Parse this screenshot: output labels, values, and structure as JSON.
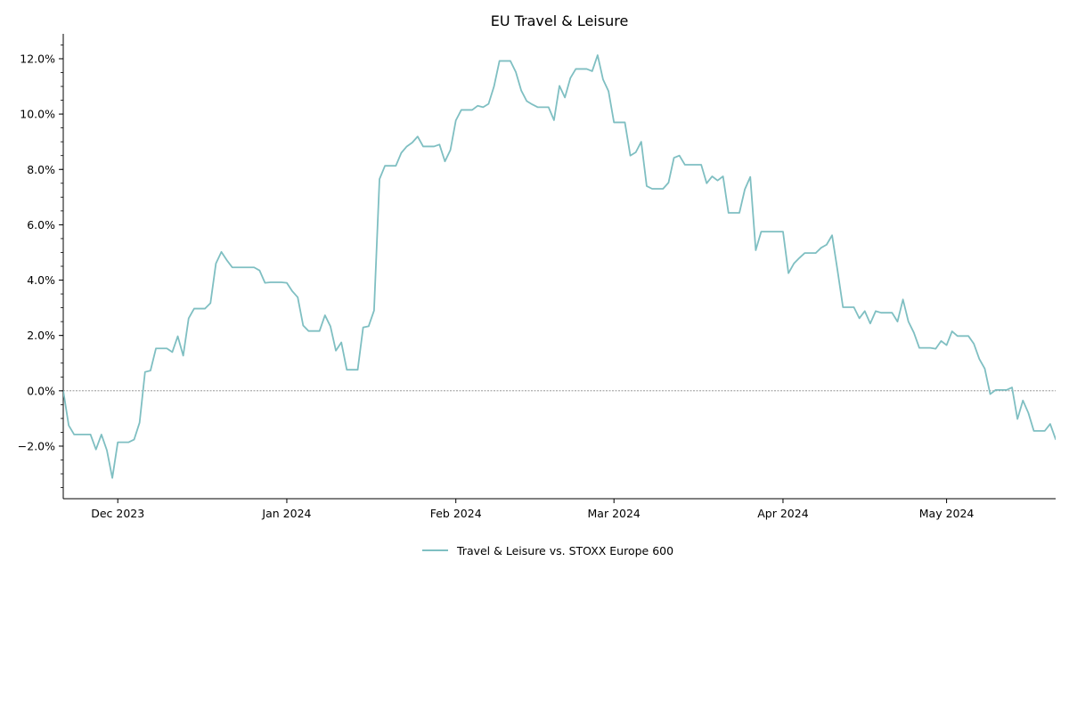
{
  "chart_data": {
    "type": "line",
    "title": "EU Travel & Leisure",
    "xlabel": "",
    "ylabel": "",
    "x_range": [
      "2023-11-21",
      "2024-05-21"
    ],
    "ylim": [
      -0.039,
      0.129
    ],
    "y_ticks": [
      {
        "value": -0.02,
        "label": "−2.0%"
      },
      {
        "value": 0.0,
        "label": "0.0%"
      },
      {
        "value": 0.02,
        "label": "2.0%"
      },
      {
        "value": 0.04,
        "label": "4.0%"
      },
      {
        "value": 0.06,
        "label": "6.0%"
      },
      {
        "value": 0.08,
        "label": "8.0%"
      },
      {
        "value": 0.1,
        "label": "10.0%"
      },
      {
        "value": 0.12,
        "label": "12.0%"
      }
    ],
    "x_ticks": [
      {
        "date": "2023-12-01",
        "label": "Dec 2023"
      },
      {
        "date": "2024-01-01",
        "label": "Jan 2024"
      },
      {
        "date": "2024-02-01",
        "label": "Feb 2024"
      },
      {
        "date": "2024-03-01",
        "label": "Mar 2024"
      },
      {
        "date": "2024-04-01",
        "label": "Apr 2024"
      },
      {
        "date": "2024-05-01",
        "label": "May 2024"
      }
    ],
    "zero_line": true,
    "grid": false,
    "legend_position": "bottom-center",
    "colors": {
      "series": "#7fbfc2",
      "zero_line": "#888888",
      "axis": "#000000"
    },
    "series": [
      {
        "name": "Travel & Leisure vs. STOXX Europe 600",
        "points": [
          [
            "2023-11-21",
            0.0
          ],
          [
            "2023-11-22",
            -0.0125
          ],
          [
            "2023-11-23",
            -0.0158
          ],
          [
            "2023-11-24",
            -0.0158
          ],
          [
            "2023-11-25",
            -0.0158
          ],
          [
            "2023-11-26",
            -0.0158
          ],
          [
            "2023-11-27",
            -0.0212
          ],
          [
            "2023-11-28",
            -0.0158
          ],
          [
            "2023-11-29",
            -0.0215
          ],
          [
            "2023-11-30",
            -0.0315
          ],
          [
            "2023-12-01",
            -0.0186
          ],
          [
            "2023-12-02",
            -0.0186
          ],
          [
            "2023-12-03",
            -0.0186
          ],
          [
            "2023-12-04",
            -0.0176
          ],
          [
            "2023-12-05",
            -0.0115
          ],
          [
            "2023-12-06",
            0.0068
          ],
          [
            "2023-12-07",
            0.0073
          ],
          [
            "2023-12-08",
            0.0153
          ],
          [
            "2023-12-09",
            0.0153
          ],
          [
            "2023-12-10",
            0.0153
          ],
          [
            "2023-12-11",
            0.014
          ],
          [
            "2023-12-12",
            0.0197
          ],
          [
            "2023-12-13",
            0.0127
          ],
          [
            "2023-12-14",
            0.0262
          ],
          [
            "2023-12-15",
            0.0297
          ],
          [
            "2023-12-16",
            0.0297
          ],
          [
            "2023-12-17",
            0.0297
          ],
          [
            "2023-12-18",
            0.0317
          ],
          [
            "2023-12-19",
            0.046
          ],
          [
            "2023-12-20",
            0.0502
          ],
          [
            "2023-12-21",
            0.0472
          ],
          [
            "2023-12-22",
            0.0446
          ],
          [
            "2023-12-23",
            0.0446
          ],
          [
            "2023-12-24",
            0.0446
          ],
          [
            "2023-12-25",
            0.0446
          ],
          [
            "2023-12-26",
            0.0446
          ],
          [
            "2023-12-27",
            0.0435
          ],
          [
            "2023-12-28",
            0.039
          ],
          [
            "2023-12-29",
            0.0392
          ],
          [
            "2023-12-30",
            0.0392
          ],
          [
            "2023-12-31",
            0.0392
          ],
          [
            "2024-01-01",
            0.039
          ],
          [
            "2024-01-02",
            0.036
          ],
          [
            "2024-01-03",
            0.0338
          ],
          [
            "2024-01-04",
            0.0236
          ],
          [
            "2024-01-05",
            0.0216
          ],
          [
            "2024-01-06",
            0.0216
          ],
          [
            "2024-01-07",
            0.0216
          ],
          [
            "2024-01-08",
            0.0273
          ],
          [
            "2024-01-09",
            0.0233
          ],
          [
            "2024-01-10",
            0.0145
          ],
          [
            "2024-01-11",
            0.0175
          ],
          [
            "2024-01-12",
            0.0076
          ],
          [
            "2024-01-13",
            0.0076
          ],
          [
            "2024-01-14",
            0.0076
          ],
          [
            "2024-01-15",
            0.0229
          ],
          [
            "2024-01-16",
            0.0233
          ],
          [
            "2024-01-17",
            0.029
          ],
          [
            "2024-01-18",
            0.0765
          ],
          [
            "2024-01-19",
            0.0813
          ],
          [
            "2024-01-20",
            0.0813
          ],
          [
            "2024-01-21",
            0.0813
          ],
          [
            "2024-01-22",
            0.086
          ],
          [
            "2024-01-23",
            0.0883
          ],
          [
            "2024-01-24",
            0.0897
          ],
          [
            "2024-01-25",
            0.0919
          ],
          [
            "2024-01-26",
            0.0883
          ],
          [
            "2024-01-27",
            0.0883
          ],
          [
            "2024-01-28",
            0.0883
          ],
          [
            "2024-01-29",
            0.089
          ],
          [
            "2024-01-30",
            0.0829
          ],
          [
            "2024-01-31",
            0.087
          ],
          [
            "2024-02-01",
            0.0977
          ],
          [
            "2024-02-02",
            0.1015
          ],
          [
            "2024-02-03",
            0.1015
          ],
          [
            "2024-02-04",
            0.1015
          ],
          [
            "2024-02-05",
            0.103
          ],
          [
            "2024-02-06",
            0.1025
          ],
          [
            "2024-02-07",
            0.1037
          ],
          [
            "2024-02-08",
            0.11
          ],
          [
            "2024-02-09",
            0.1192
          ],
          [
            "2024-02-10",
            0.1192
          ],
          [
            "2024-02-11",
            0.1192
          ],
          [
            "2024-02-12",
            0.1152
          ],
          [
            "2024-02-13",
            0.1085
          ],
          [
            "2024-02-14",
            0.1047
          ],
          [
            "2024-02-15",
            0.1035
          ],
          [
            "2024-02-16",
            0.1025
          ],
          [
            "2024-02-17",
            0.1025
          ],
          [
            "2024-02-18",
            0.1025
          ],
          [
            "2024-02-19",
            0.0978
          ],
          [
            "2024-02-20",
            0.1102
          ],
          [
            "2024-02-21",
            0.106
          ],
          [
            "2024-02-22",
            0.113
          ],
          [
            "2024-02-23",
            0.1163
          ],
          [
            "2024-02-24",
            0.1163
          ],
          [
            "2024-02-25",
            0.1163
          ],
          [
            "2024-02-26",
            0.1155
          ],
          [
            "2024-02-27",
            0.1213
          ],
          [
            "2024-02-28",
            0.1125
          ],
          [
            "2024-02-29",
            0.1083
          ],
          [
            "2024-03-01",
            0.097
          ],
          [
            "2024-03-02",
            0.097
          ],
          [
            "2024-03-03",
            0.097
          ],
          [
            "2024-03-04",
            0.085
          ],
          [
            "2024-03-05",
            0.0862
          ],
          [
            "2024-03-06",
            0.09
          ],
          [
            "2024-03-07",
            0.074
          ],
          [
            "2024-03-08",
            0.073
          ],
          [
            "2024-03-09",
            0.073
          ],
          [
            "2024-03-10",
            0.073
          ],
          [
            "2024-03-11",
            0.0752
          ],
          [
            "2024-03-12",
            0.0842
          ],
          [
            "2024-03-13",
            0.085
          ],
          [
            "2024-03-14",
            0.0817
          ],
          [
            "2024-03-15",
            0.0817
          ],
          [
            "2024-03-16",
            0.0817
          ],
          [
            "2024-03-17",
            0.0817
          ],
          [
            "2024-03-18",
            0.075
          ],
          [
            "2024-03-19",
            0.0775
          ],
          [
            "2024-03-20",
            0.076
          ],
          [
            "2024-03-21",
            0.0775
          ],
          [
            "2024-03-22",
            0.0643
          ],
          [
            "2024-03-23",
            0.0643
          ],
          [
            "2024-03-24",
            0.0643
          ],
          [
            "2024-03-25",
            0.0728
          ],
          [
            "2024-03-26",
            0.0773
          ],
          [
            "2024-03-27",
            0.0508
          ],
          [
            "2024-03-28",
            0.0575
          ],
          [
            "2024-03-29",
            0.0575
          ],
          [
            "2024-03-30",
            0.0575
          ],
          [
            "2024-03-31",
            0.0575
          ],
          [
            "2024-04-01",
            0.0575
          ],
          [
            "2024-04-02",
            0.0425
          ],
          [
            "2024-04-03",
            0.046
          ],
          [
            "2024-04-04",
            0.048
          ],
          [
            "2024-04-05",
            0.0498
          ],
          [
            "2024-04-06",
            0.0498
          ],
          [
            "2024-04-07",
            0.0498
          ],
          [
            "2024-04-08",
            0.0517
          ],
          [
            "2024-04-09",
            0.0528
          ],
          [
            "2024-04-10",
            0.0562
          ],
          [
            "2024-04-11",
            0.0435
          ],
          [
            "2024-04-12",
            0.0302
          ],
          [
            "2024-04-13",
            0.0302
          ],
          [
            "2024-04-14",
            0.0302
          ],
          [
            "2024-04-15",
            0.0262
          ],
          [
            "2024-04-16",
            0.0288
          ],
          [
            "2024-04-17",
            0.0243
          ],
          [
            "2024-04-18",
            0.0288
          ],
          [
            "2024-04-19",
            0.0282
          ],
          [
            "2024-04-20",
            0.0282
          ],
          [
            "2024-04-21",
            0.0282
          ],
          [
            "2024-04-22",
            0.025
          ],
          [
            "2024-04-23",
            0.033
          ],
          [
            "2024-04-24",
            0.025
          ],
          [
            "2024-04-25",
            0.021
          ],
          [
            "2024-04-26",
            0.0155
          ],
          [
            "2024-04-27",
            0.0155
          ],
          [
            "2024-04-28",
            0.0155
          ],
          [
            "2024-04-29",
            0.0152
          ],
          [
            "2024-04-30",
            0.018
          ],
          [
            "2024-05-01",
            0.0165
          ],
          [
            "2024-05-02",
            0.0215
          ],
          [
            "2024-05-03",
            0.0198
          ],
          [
            "2024-05-04",
            0.0198
          ],
          [
            "2024-05-05",
            0.0198
          ],
          [
            "2024-05-06",
            0.017
          ],
          [
            "2024-05-07",
            0.0115
          ],
          [
            "2024-05-08",
            0.008
          ],
          [
            "2024-05-09",
            -0.0012
          ],
          [
            "2024-05-10",
            0.0003
          ],
          [
            "2024-05-11",
            0.0003
          ],
          [
            "2024-05-12",
            0.0003
          ],
          [
            "2024-05-13",
            0.0012
          ],
          [
            "2024-05-14",
            -0.0102
          ],
          [
            "2024-05-15",
            -0.0035
          ],
          [
            "2024-05-16",
            -0.008
          ],
          [
            "2024-05-17",
            -0.0145
          ],
          [
            "2024-05-18",
            -0.0145
          ],
          [
            "2024-05-19",
            -0.0145
          ],
          [
            "2024-05-20",
            -0.012
          ],
          [
            "2024-05-21",
            -0.0175
          ],
          [
            "2024-05-22",
            -0.015
          ]
        ]
      }
    ]
  }
}
